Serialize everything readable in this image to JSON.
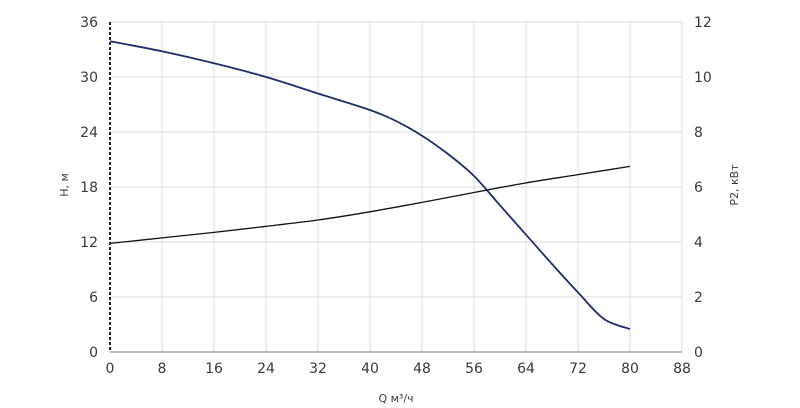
{
  "chart_data": {
    "type": "line",
    "title": "",
    "xlabel": "Q м³/ч",
    "ylabel_left": "H, м",
    "ylabel_right": "P2, кВт",
    "xlim": [
      0,
      88
    ],
    "ylim_left": [
      0,
      36
    ],
    "ylim_right": [
      0,
      12
    ],
    "x_ticks": [
      "0",
      "8",
      "16",
      "24",
      "32",
      "40",
      "48",
      "56",
      "64",
      "72",
      "80",
      "88"
    ],
    "y_ticks_left": [
      "0",
      "6",
      "12",
      "18",
      "24",
      "30",
      "36"
    ],
    "y_ticks_right": [
      "0",
      "2",
      "4",
      "6",
      "8",
      "10",
      "12"
    ],
    "grid": true,
    "series": [
      {
        "axis": "left",
        "color": "#1f2d6b",
        "x": [
          0,
          8,
          16,
          24,
          32,
          40,
          44,
          48,
          52,
          56,
          60,
          64,
          68,
          72,
          76,
          80
        ],
        "y": [
          33.9,
          32.8,
          31.5,
          30.0,
          28.2,
          26.4,
          25.2,
          23.6,
          21.6,
          19.2,
          16.0,
          12.8,
          9.6,
          6.5,
          3.6,
          2.5
        ]
      },
      {
        "axis": "right",
        "color": "#111111",
        "x": [
          0,
          8,
          16,
          24,
          32,
          40,
          48,
          56,
          64,
          72,
          80
        ],
        "y": [
          3.95,
          4.15,
          4.35,
          4.57,
          4.8,
          5.1,
          5.44,
          5.8,
          6.15,
          6.45,
          6.75
        ]
      }
    ]
  }
}
